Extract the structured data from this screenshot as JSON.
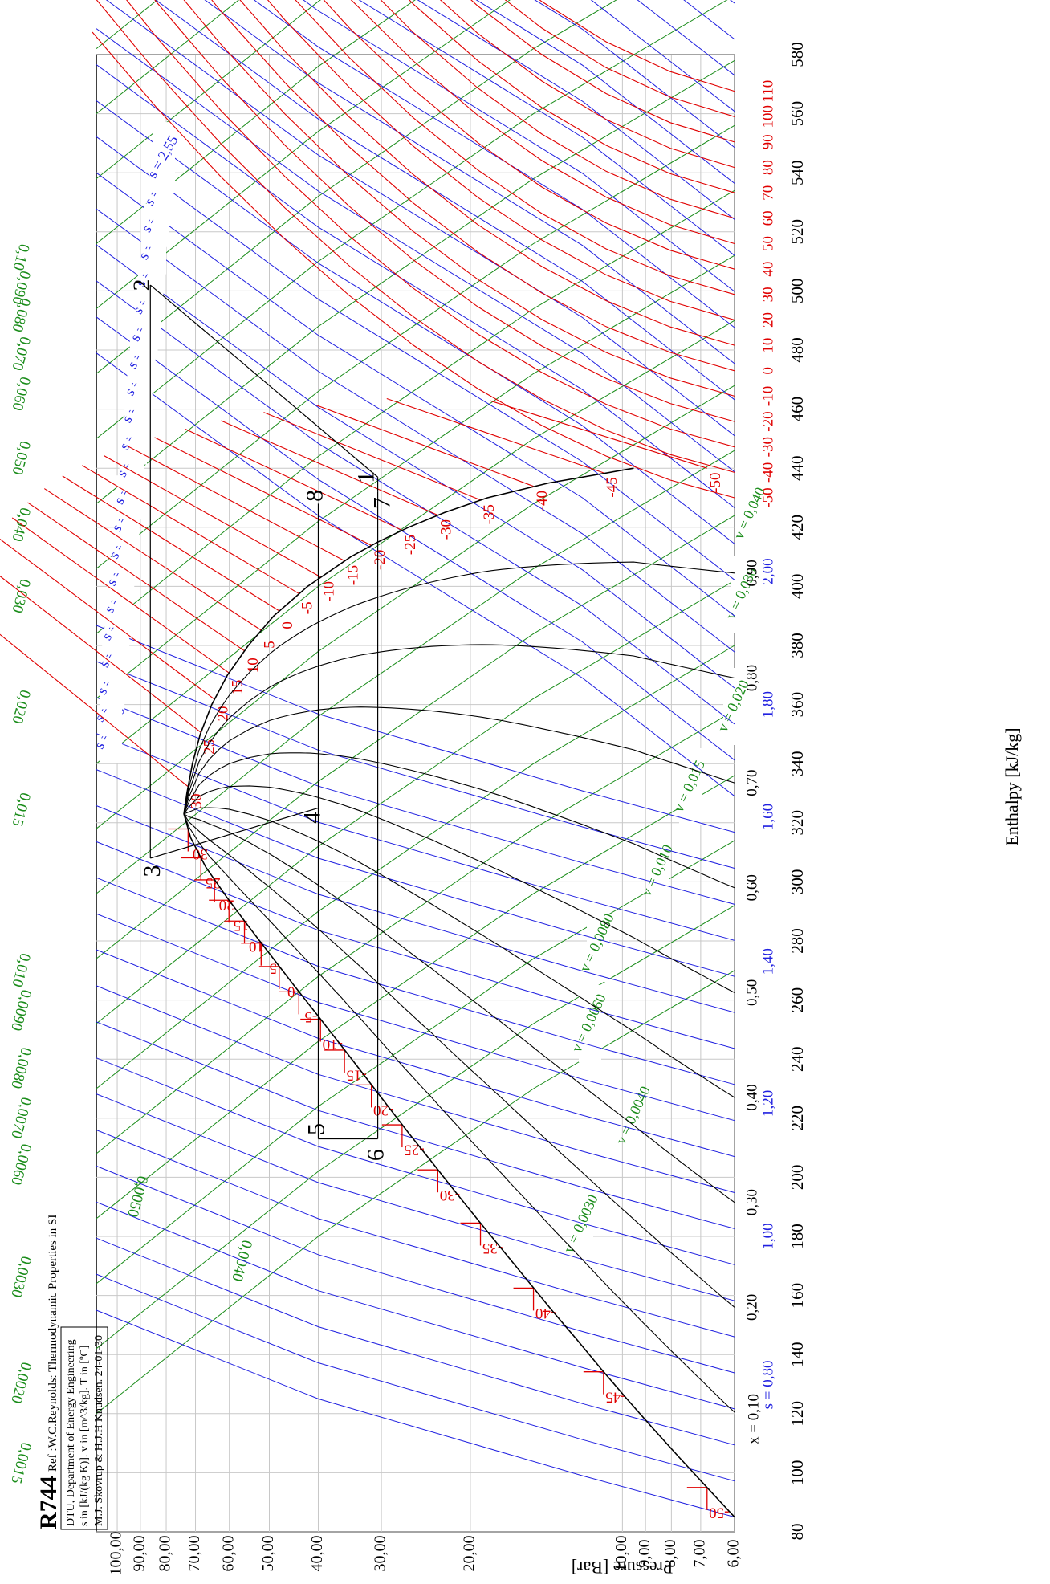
{
  "chart_data": {
    "type": "line",
    "title": "R744",
    "subtitle": "Ref :W.C.Reynolds: Thermodynamic Properties in SI",
    "info_lines": [
      "DTU, Department of Energy Engineering",
      "s in [kJ/(kg K)]. v in [m^3/kg]. T in [ºC]",
      "M.J. Skovrup & H.J.H Knudsen. 24-01-30"
    ],
    "xlabel": "Enthalpy [kJ/kg]",
    "ylabel": "Pressure [Bar]",
    "x_scale": "linear",
    "y_scale": "log",
    "xlim": [
      80,
      580
    ],
    "ylim": [
      6,
      110
    ],
    "grid": true,
    "x_ticks": [
      "80",
      "100",
      "120",
      "140",
      "160",
      "180",
      "200",
      "220",
      "240",
      "260",
      "280",
      "300",
      "320",
      "340",
      "360",
      "380",
      "400",
      "420",
      "440",
      "460",
      "480",
      "500",
      "520",
      "540",
      "560",
      "580"
    ],
    "y_ticks": [
      "6,00",
      "7,00",
      "8,00",
      "9,00",
      "10,00",
      "20,00",
      "30,00",
      "40,00",
      "50,00",
      "60,00",
      "70,00",
      "80,00",
      "90,00",
      "100,00"
    ],
    "quality_labels": [
      "x = 0,10",
      "0,20",
      "0,30",
      "0,40",
      "0,50",
      "0,60",
      "0,70",
      "0,80",
      "0,90"
    ],
    "entropy_bottom_labels": [
      "s = 0,80",
      "1,00",
      "1,20",
      "1,40",
      "1,60",
      "1,80",
      "2,00"
    ],
    "entropy_labels": [
      "s = 1,50",
      "s = 1,55",
      "s = 1,60",
      "s = 1,65",
      "s = 1,70",
      "s = 1,75",
      "s = 1,80",
      "s = 1,85",
      "s = 1,90",
      "s = 1,95",
      "s = 2,00",
      "s = 2,05",
      "s = 2,10",
      "s = 2,15",
      "s = 2,20",
      "s = 2,25",
      "s = 2,30",
      "s = 2,35",
      "s = 2,40",
      "s = 2,45",
      "s = 2,50",
      "s = 2,55"
    ],
    "volume_top_labels": [
      "0,0015",
      "0,0020",
      "0,0030",
      "0,0040",
      "0,0050",
      "0,0060",
      "0,0070",
      "0,0080",
      "0,0090",
      "0,010",
      "0,015",
      "0,020",
      "0,030",
      "0,040",
      "0,050",
      "0,060",
      "0,070",
      "0,080",
      "0,090",
      "0,10"
    ],
    "volume_inner_labels": [
      "v = 0,0030",
      "v = 0,0040",
      "v = 0,0060",
      "v = 0,0080",
      "v = 0,010",
      "v = 0,015",
      "v = 0,020",
      "v = 0,030",
      "v = 0,040"
    ],
    "temperature_right_labels": [
      "-50",
      "-40",
      "-30",
      "-20",
      "-10",
      "0",
      "10",
      "20",
      "30",
      "40",
      "50",
      "60",
      "70",
      "80",
      "90",
      "100",
      "110"
    ],
    "temperature_vapor_labels": [
      "-50",
      "-45",
      "-40",
      "-35",
      "-30",
      "-25",
      "-20",
      "-15",
      "-10",
      "-5",
      "0",
      "5",
      "10",
      "15",
      "20",
      "25",
      "30"
    ],
    "temperature_liquid_labels": [
      "-50",
      "-45",
      "-40",
      "-35",
      "-30",
      "-25",
      "-20",
      "-15",
      "-10",
      "-5",
      "0",
      "5",
      "10",
      "15",
      "20",
      "25",
      "30"
    ],
    "saturated_liquid": {
      "h": [
        85,
        95,
        105,
        115,
        125,
        135,
        145,
        155,
        165,
        175,
        185,
        195,
        205,
        215,
        225,
        235,
        245,
        255,
        265,
        275,
        285,
        295,
        305,
        315,
        323
      ],
      "p": [
        6.0,
        6.8,
        7.7,
        8.7,
        9.8,
        11.0,
        12.3,
        13.8,
        15.4,
        17.2,
        19.2,
        21.4,
        23.8,
        26.5,
        29.4,
        32.6,
        36.2,
        40.2,
        44.7,
        49.6,
        55.0,
        60.8,
        66.8,
        71.6,
        73.8
      ]
    },
    "saturated_vapor": {
      "h": [
        323,
        330,
        340,
        350,
        360,
        370,
        380,
        390,
        400,
        410,
        415,
        420,
        425,
        430,
        435,
        440
      ],
      "p": [
        73.8,
        72.8,
        71.0,
        68.5,
        65.0,
        60.5,
        55.0,
        49.0,
        42.0,
        34.5,
        30.5,
        26.5,
        22.5,
        18.5,
        14.0,
        9.5
      ]
    },
    "cycle_points": [
      {
        "id": "1",
        "h": 437,
        "p": 30.5
      },
      {
        "id": "2",
        "h": 502,
        "p": 86.0
      },
      {
        "id": "3",
        "h": 308,
        "p": 86.0
      },
      {
        "id": "4",
        "h": 325,
        "p": 40.0
      },
      {
        "id": "5",
        "h": 213,
        "p": 40.0
      },
      {
        "id": "6",
        "h": 213,
        "p": 30.5
      },
      {
        "id": "7",
        "h": 432,
        "p": 30.5
      },
      {
        "id": "8",
        "h": 428,
        "p": 40.0
      }
    ],
    "series": [
      {
        "name": "x = 0,10",
        "h": [
          85,
          118
        ],
        "p": [
          6.0,
          73.8
        ]
      },
      {
        "name": "0,20",
        "h": [
          155,
          160
        ],
        "p": [
          6.0,
          73.8
        ]
      },
      {
        "name": "0,30",
        "h": [
          190,
          200
        ],
        "p": [
          6.0,
          73.8
        ]
      },
      {
        "name": "0,40",
        "h": [
          225,
          230
        ],
        "p": [
          6.0,
          73.8
        ]
      },
      {
        "name": "0,50",
        "h": [
          258,
          262
        ],
        "p": [
          6.0,
          73.8
        ]
      },
      {
        "name": "0,60",
        "h": [
          290,
          295
        ],
        "p": [
          6.0,
          73.8
        ]
      },
      {
        "name": "0,70",
        "h": [
          323,
          325
        ],
        "p": [
          6.0,
          73.8
        ]
      },
      {
        "name": "0,80",
        "h": [
          358,
          360
        ],
        "p": [
          6.0,
          73.8
        ]
      },
      {
        "name": "0,90",
        "h": [
          395,
          398
        ],
        "p": [
          6.0,
          73.8
        ]
      }
    ]
  }
}
